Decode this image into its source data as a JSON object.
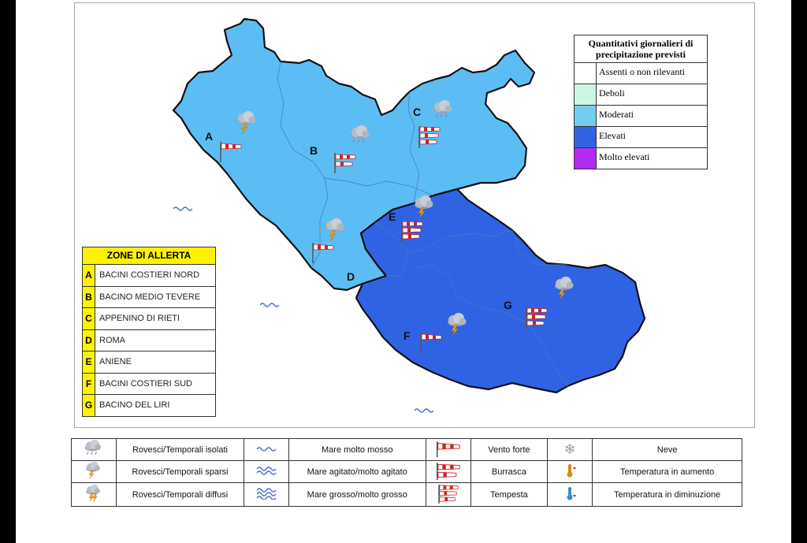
{
  "precipitation_legend": {
    "title": "Quantitativi giornalieri di precipitazione previsti",
    "items": [
      {
        "label": "Assenti o non rilevanti",
        "color": "#ffffff"
      },
      {
        "label": "Deboli",
        "color": "#ccf7e4"
      },
      {
        "label": "Moderati",
        "color": "#74cbf0"
      },
      {
        "label": "Elevati",
        "color": "#2f63e3"
      },
      {
        "label": "Molto elevati",
        "color": "#b12cf0"
      }
    ]
  },
  "zones_table": {
    "title": "ZONE DI ALLERTA",
    "zones": [
      {
        "letter": "A",
        "name": "BACINI COSTIERI NORD",
        "level": "Moderati",
        "color": "#5cbdf5"
      },
      {
        "letter": "B",
        "name": "BACINO MEDIO TEVERE",
        "level": "Moderati",
        "color": "#5cbdf5"
      },
      {
        "letter": "C",
        "name": "APPENINO DI RIETI",
        "level": "Moderati",
        "color": "#5cbdf5"
      },
      {
        "letter": "D",
        "name": "ROMA",
        "level": "Moderati",
        "color": "#5cbdf5"
      },
      {
        "letter": "E",
        "name": "ANIENE",
        "level": "Elevati",
        "color": "#2f63e3"
      },
      {
        "letter": "F",
        "name": "BACINI COSTIERI SUD",
        "level": "Elevati",
        "color": "#2f63e3"
      },
      {
        "letter": "G",
        "name": "BACINO DEL LIRI",
        "level": "Elevati",
        "color": "#2f63e3"
      }
    ]
  },
  "map_icons": [
    {
      "zone": "A",
      "weather": "rovesci-temporali-isolati-icon",
      "wind": "vento-forte-icon"
    },
    {
      "zone": "B",
      "weather": "rovesci-temporali-sparsi-icon",
      "wind": "burrasca-icon"
    },
    {
      "zone": "C",
      "weather": "rovesci-temporali-sparsi-icon",
      "wind": "tempesta-icon"
    },
    {
      "zone": "D",
      "weather": "rovesci-temporali-isolati-icon",
      "wind": "vento-forte-icon"
    },
    {
      "zone": "E",
      "weather": "rovesci-temporali-isolati-icon",
      "wind": "tempesta-icon"
    },
    {
      "zone": "F",
      "weather": "rovesci-temporali-isolati-icon",
      "wind": "vento-forte-icon"
    },
    {
      "zone": "G",
      "weather": "rovesci-temporali-isolati-icon",
      "wind": "tempesta-icon"
    }
  ],
  "sea_state": [
    {
      "symbol": "mare-molto-mosso-icon"
    },
    {
      "symbol": "mare-molto-mosso-icon"
    },
    {
      "symbol": "mare-molto-mosso-icon"
    }
  ],
  "bottom_legend": {
    "rows": [
      [
        {
          "icon": "rovesci-temporali-isolati-icon",
          "label": "Rovesci/Temporali isolati"
        },
        {
          "icon": "mare-molto-mosso-icon",
          "label": "Mare molto mosso"
        },
        {
          "icon": "vento-forte-icon",
          "label": "Vento forte"
        },
        {
          "icon": "neve-icon",
          "label": "Neve"
        }
      ],
      [
        {
          "icon": "rovesci-temporali-sparsi-icon",
          "label": "Rovesci/Temporali sparsi"
        },
        {
          "icon": "mare-agitato-icon",
          "label": "Mare agitato/molto agitato"
        },
        {
          "icon": "burrasca-icon",
          "label": "Burrasca"
        },
        {
          "icon": "temperatura-aumento-icon",
          "label": "Temperatura in aumento"
        }
      ],
      [
        {
          "icon": "rovesci-temporali-diffusi-icon",
          "label": "Rovesci/Temporali diffusi"
        },
        {
          "icon": "mare-grosso-icon",
          "label": "Mare grosso/molto grosso"
        },
        {
          "icon": "tempesta-icon",
          "label": "Tempesta"
        },
        {
          "icon": "temperatura-diminuzione-icon",
          "label": "Temperatura in diminuzione"
        }
      ]
    ]
  }
}
